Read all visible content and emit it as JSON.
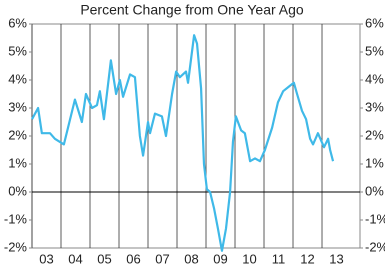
{
  "chart_data": {
    "type": "line",
    "title": "Percent Change from One Year Ago",
    "x": [
      2003.0,
      2003.21,
      2003.34,
      2003.62,
      2003.79,
      2004.1,
      2004.48,
      2004.72,
      2004.86,
      2005.07,
      2005.24,
      2005.34,
      2005.48,
      2005.72,
      2005.9,
      2006.03,
      2006.14,
      2006.38,
      2006.55,
      2006.72,
      2006.83,
      2007.0,
      2007.07,
      2007.24,
      2007.48,
      2007.62,
      2007.83,
      2007.97,
      2008.1,
      2008.31,
      2008.38,
      2008.59,
      2008.69,
      2008.83,
      2008.93,
      2009.03,
      2009.14,
      2009.28,
      2009.41,
      2009.55,
      2009.69,
      2009.83,
      2009.93,
      2010.03,
      2010.21,
      2010.34,
      2010.52,
      2010.69,
      2010.86,
      2011.03,
      2011.28,
      2011.48,
      2011.66,
      2011.9,
      2012.03,
      2012.14,
      2012.31,
      2012.45,
      2012.59,
      2012.69,
      2012.86,
      2013.07,
      2013.21,
      2013.28,
      2013.38
    ],
    "series": [
      {
        "color": "#3fb9e8",
        "values": [
          2.6,
          3.0,
          2.1,
          2.1,
          1.9,
          1.7,
          3.3,
          2.5,
          3.5,
          3.0,
          3.1,
          3.6,
          2.6,
          4.7,
          3.5,
          4.0,
          3.4,
          4.2,
          4.1,
          2.0,
          1.3,
          2.5,
          2.1,
          2.8,
          2.7,
          2.0,
          3.5,
          4.3,
          4.1,
          4.3,
          3.9,
          5.6,
          5.3,
          3.7,
          1.0,
          0.1,
          0.0,
          -0.6,
          -1.3,
          -2.1,
          -1.3,
          0.0,
          1.8,
          2.7,
          2.2,
          2.1,
          1.1,
          1.2,
          1.1,
          1.5,
          2.3,
          3.2,
          3.6,
          3.8,
          3.9,
          3.5,
          2.9,
          2.6,
          1.9,
          1.7,
          2.1,
          1.6,
          1.9,
          1.5,
          1.1
        ]
      }
    ],
    "xlim": [
      2003,
      2014.31
    ],
    "xticks": [
      {
        "value": 2003,
        "label": "03"
      },
      {
        "value": 2004,
        "label": "04"
      },
      {
        "value": 2005,
        "label": "05"
      },
      {
        "value": 2006,
        "label": "06"
      },
      {
        "value": 2007,
        "label": "07"
      },
      {
        "value": 2008,
        "label": "08"
      },
      {
        "value": 2009,
        "label": "09"
      },
      {
        "value": 2010,
        "label": "10"
      },
      {
        "value": 2011,
        "label": "11"
      },
      {
        "value": 2012,
        "label": "12"
      },
      {
        "value": 2013,
        "label": "13"
      }
    ],
    "ylim": [
      -2,
      6
    ],
    "yticks": [
      {
        "value": -2,
        "label": "-2%"
      },
      {
        "value": -1,
        "label": "-1%"
      },
      {
        "value": 0,
        "label": "0%"
      },
      {
        "value": 1,
        "label": "1%"
      },
      {
        "value": 2,
        "label": "2%"
      },
      {
        "value": 3,
        "label": "3%"
      },
      {
        "value": 4,
        "label": "4%"
      },
      {
        "value": 5,
        "label": "5%"
      },
      {
        "value": 6,
        "label": "6%"
      }
    ],
    "grid": true
  }
}
